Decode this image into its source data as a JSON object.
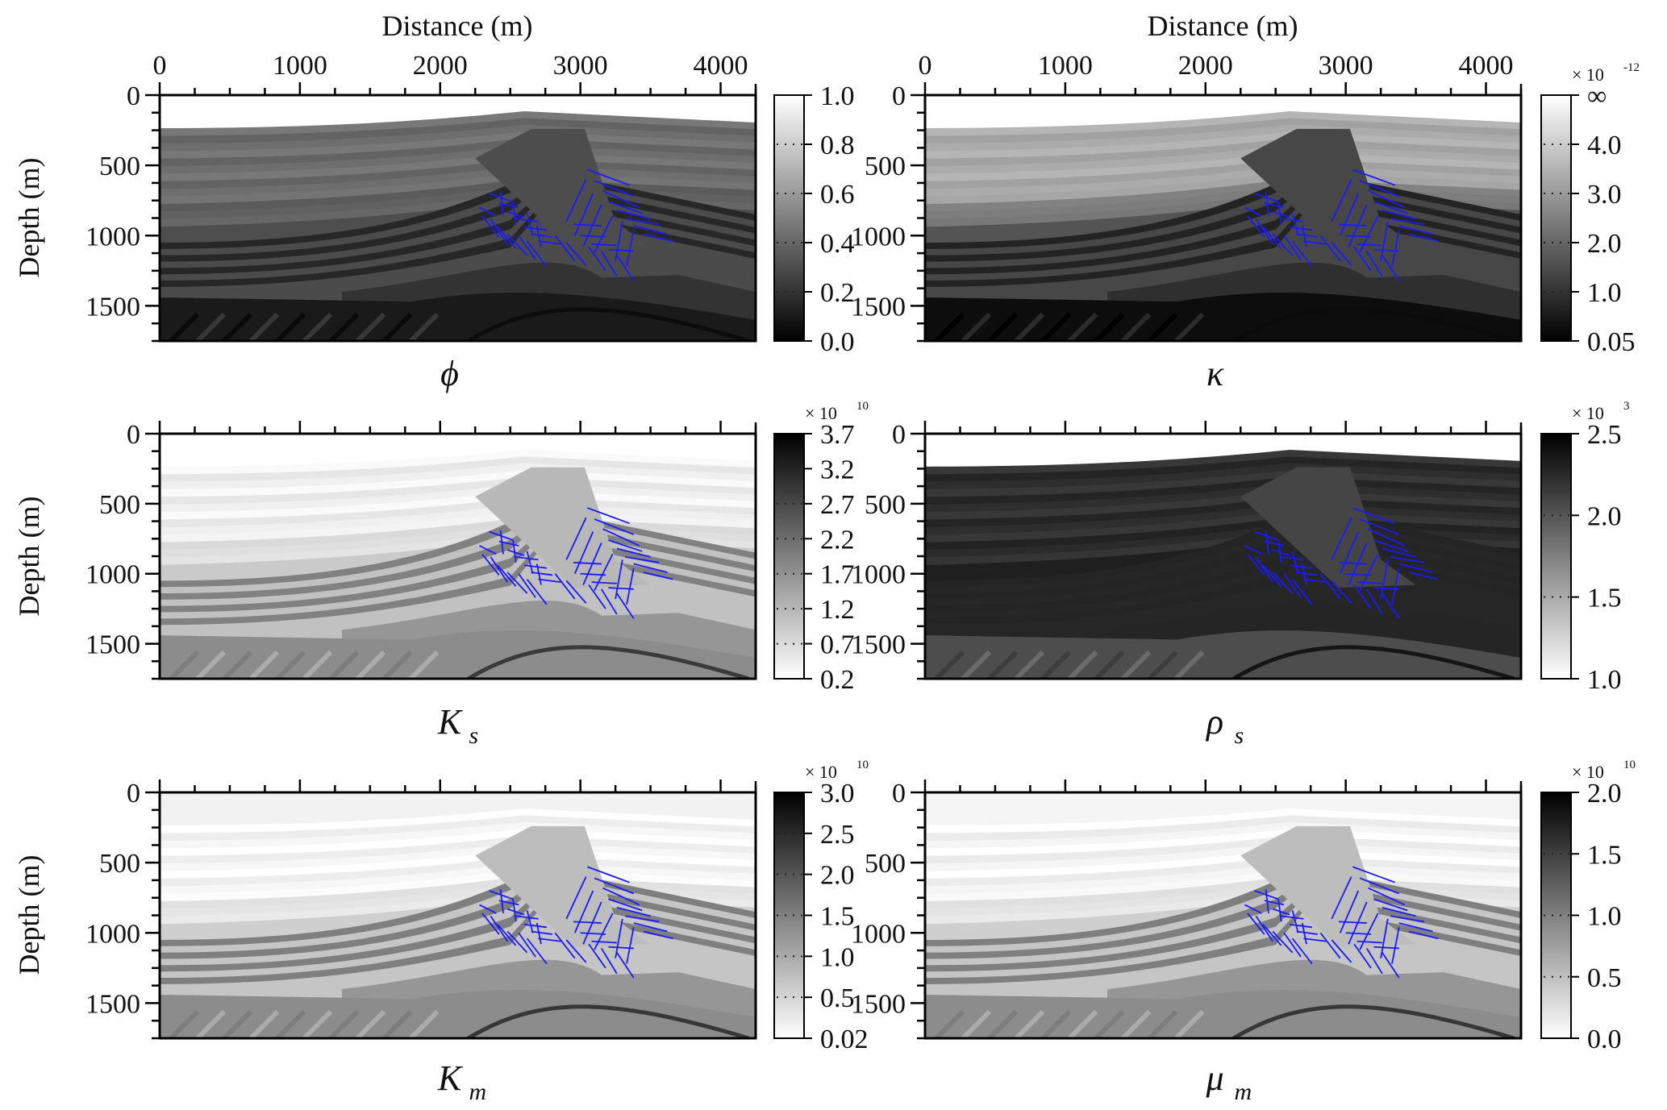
{
  "figure": {
    "x_axis_title": "Distance (m)",
    "y_axis_title": "Depth (m)"
  },
  "chart_data": [
    {
      "type": "heatmap",
      "id": "phi",
      "label_main": "ϕ",
      "label_sub": "",
      "xlabel": "Distance (m)",
      "ylabel": "Depth (m)",
      "xlim": [
        0,
        4250
      ],
      "ylim": [
        1750,
        0
      ],
      "x_ticks": [
        "0",
        "1000",
        "2000",
        "3000",
        "4000"
      ],
      "y_ticks": [
        "0",
        "500",
        "1000",
        "1500"
      ],
      "colormap": "gray",
      "colorbar": {
        "multiplier": "",
        "exponent": "",
        "labels": [
          "1.0",
          "0.8",
          "0.6",
          "0.4",
          "0.2",
          "0.0"
        ],
        "reversed": false
      },
      "tone": {
        "water": 1.0,
        "upper": 0.42,
        "mid": 0.32,
        "deep": 0.08,
        "base": 0.1,
        "fold": 0.3
      }
    },
    {
      "type": "heatmap",
      "id": "kappa",
      "label_main": "κ",
      "label_sub": "",
      "xlabel": "Distance (m)",
      "ylabel": "Depth (m)",
      "xlim": [
        0,
        4250
      ],
      "ylim": [
        1750,
        0
      ],
      "x_ticks": [
        "0",
        "1000",
        "2000",
        "3000",
        "4000"
      ],
      "y_ticks": [
        "0",
        "500",
        "1000",
        "1500"
      ],
      "colormap": "gray",
      "colorbar": {
        "multiplier": "× 10",
        "exponent": "-12",
        "labels": [
          "∞",
          "4.0",
          "3.0",
          "2.0",
          "1.0",
          "0.05"
        ],
        "reversed": false
      },
      "tone": {
        "water": 1.0,
        "upper": 0.66,
        "mid": 0.3,
        "deep": 0.07,
        "base": 0.05,
        "fold": 0.28
      }
    },
    {
      "type": "heatmap",
      "id": "Ks",
      "label_main": "K",
      "label_sub": "s",
      "xlabel": "Distance (m)",
      "ylabel": "Depth (m)",
      "xlim": [
        0,
        4250
      ],
      "ylim": [
        1750,
        0
      ],
      "x_ticks": [],
      "y_ticks": [
        "0",
        "500",
        "1000",
        "1500"
      ],
      "colormap": "gray_r",
      "colorbar": {
        "multiplier": "× 10",
        "exponent": "10",
        "labels": [
          "3.7",
          "3.2",
          "2.7",
          "2.2",
          "1.7",
          "1.2",
          "0.7",
          "0.2"
        ],
        "reversed": true
      },
      "tone": {
        "water": 1.0,
        "upper": 0.93,
        "mid": 0.8,
        "deep": 0.38,
        "base": 0.55,
        "fold": 0.72
      }
    },
    {
      "type": "heatmap",
      "id": "rho_s",
      "label_main": "ρ",
      "label_sub": "s",
      "xlabel": "Distance (m)",
      "ylabel": "Depth (m)",
      "xlim": [
        0,
        4250
      ],
      "ylim": [
        1750,
        0
      ],
      "x_ticks": [],
      "y_ticks": [
        "0",
        "500",
        "1000",
        "1500"
      ],
      "colormap": "gray_r",
      "colorbar": {
        "multiplier": "× 10",
        "exponent": "3",
        "labels": [
          "2.5",
          "2.0",
          "1.5",
          "1.0"
        ],
        "reversed": true
      },
      "tone": {
        "water": 1.0,
        "upper": 0.17,
        "mid": 0.15,
        "deep": 0.14,
        "base": 0.3,
        "fold": 0.27
      }
    },
    {
      "type": "heatmap",
      "id": "Km",
      "label_main": "K",
      "label_sub": "m",
      "xlabel": "Distance (m)",
      "ylabel": "Depth (m)",
      "xlim": [
        0,
        4250
      ],
      "ylim": [
        1750,
        0
      ],
      "x_ticks": [],
      "y_ticks": [
        "0",
        "500",
        "1000",
        "1500"
      ],
      "colormap": "gray_r",
      "colorbar": {
        "multiplier": "× 10",
        "exponent": "10",
        "labels": [
          "3.0",
          "2.5",
          "2.0",
          "1.5",
          "1.0",
          "0.5",
          "0.02"
        ],
        "reversed": true
      },
      "tone": {
        "water": 0.95,
        "upper": 0.96,
        "mid": 0.82,
        "deep": 0.36,
        "base": 0.55,
        "fold": 0.74
      }
    },
    {
      "type": "heatmap",
      "id": "mu_m",
      "label_main": "μ",
      "label_sub": "m",
      "xlabel": "Distance (m)",
      "ylabel": "Depth (m)",
      "xlim": [
        0,
        4250
      ],
      "ylim": [
        1750,
        0
      ],
      "x_ticks": [],
      "y_ticks": [
        "0",
        "500",
        "1000",
        "1500"
      ],
      "colormap": "gray_r",
      "colorbar": {
        "multiplier": "× 10",
        "exponent": "10",
        "labels": [
          "2.0",
          "1.5",
          "1.0",
          "0.5",
          "0.0"
        ],
        "reversed": true
      },
      "tone": {
        "water": 0.96,
        "upper": 0.95,
        "mid": 0.82,
        "deep": 0.36,
        "base": 0.55,
        "fold": 0.74
      }
    }
  ],
  "fractures": {
    "color": "#1a1aff",
    "segments": [
      [
        2350,
        700,
        2520,
        760
      ],
      [
        2420,
        770,
        2560,
        800
      ],
      [
        2480,
        830,
        2600,
        870
      ],
      [
        2540,
        880,
        2700,
        900
      ],
      [
        2600,
        940,
        2760,
        960
      ],
      [
        2650,
        990,
        2800,
        1010
      ],
      [
        2700,
        1040,
        2860,
        1060
      ],
      [
        2280,
        800,
        2400,
        860
      ],
      [
        2300,
        860,
        2420,
        1010
      ],
      [
        2360,
        880,
        2480,
        1060
      ],
      [
        2410,
        940,
        2540,
        1090
      ],
      [
        2480,
        990,
        2620,
        1140
      ],
      [
        2560,
        1000,
        2680,
        1170
      ],
      [
        2620,
        1040,
        2760,
        1220
      ],
      [
        2430,
        690,
        2450,
        860
      ],
      [
        2520,
        760,
        2540,
        920
      ],
      [
        2620,
        840,
        2660,
        1000
      ],
      [
        2690,
        930,
        2720,
        1080
      ],
      [
        3050,
        530,
        3350,
        640
      ],
      [
        3100,
        610,
        3380,
        720
      ],
      [
        3160,
        680,
        3420,
        800
      ],
      [
        3200,
        760,
        3440,
        840
      ],
      [
        3260,
        820,
        3500,
        880
      ],
      [
        3320,
        880,
        3560,
        920
      ],
      [
        3380,
        930,
        3620,
        990
      ],
      [
        3450,
        990,
        3660,
        1040
      ],
      [
        2950,
        920,
        3150,
        930
      ],
      [
        3000,
        1000,
        3180,
        1010
      ],
      [
        3080,
        1060,
        3260,
        1070
      ],
      [
        3200,
        1100,
        3380,
        1110
      ],
      [
        3040,
        600,
        2900,
        900
      ],
      [
        3090,
        700,
        2960,
        1000
      ],
      [
        3150,
        780,
        3020,
        1080
      ],
      [
        3230,
        860,
        3100,
        1120
      ],
      [
        3300,
        900,
        3250,
        1180
      ],
      [
        3380,
        960,
        3330,
        1220
      ],
      [
        2820,
        1000,
        2960,
        1180
      ],
      [
        2900,
        1050,
        3040,
        1210
      ],
      [
        3060,
        1080,
        3180,
        1250
      ],
      [
        3150,
        1110,
        3260,
        1290
      ],
      [
        3260,
        1140,
        3380,
        1320
      ]
    ]
  }
}
